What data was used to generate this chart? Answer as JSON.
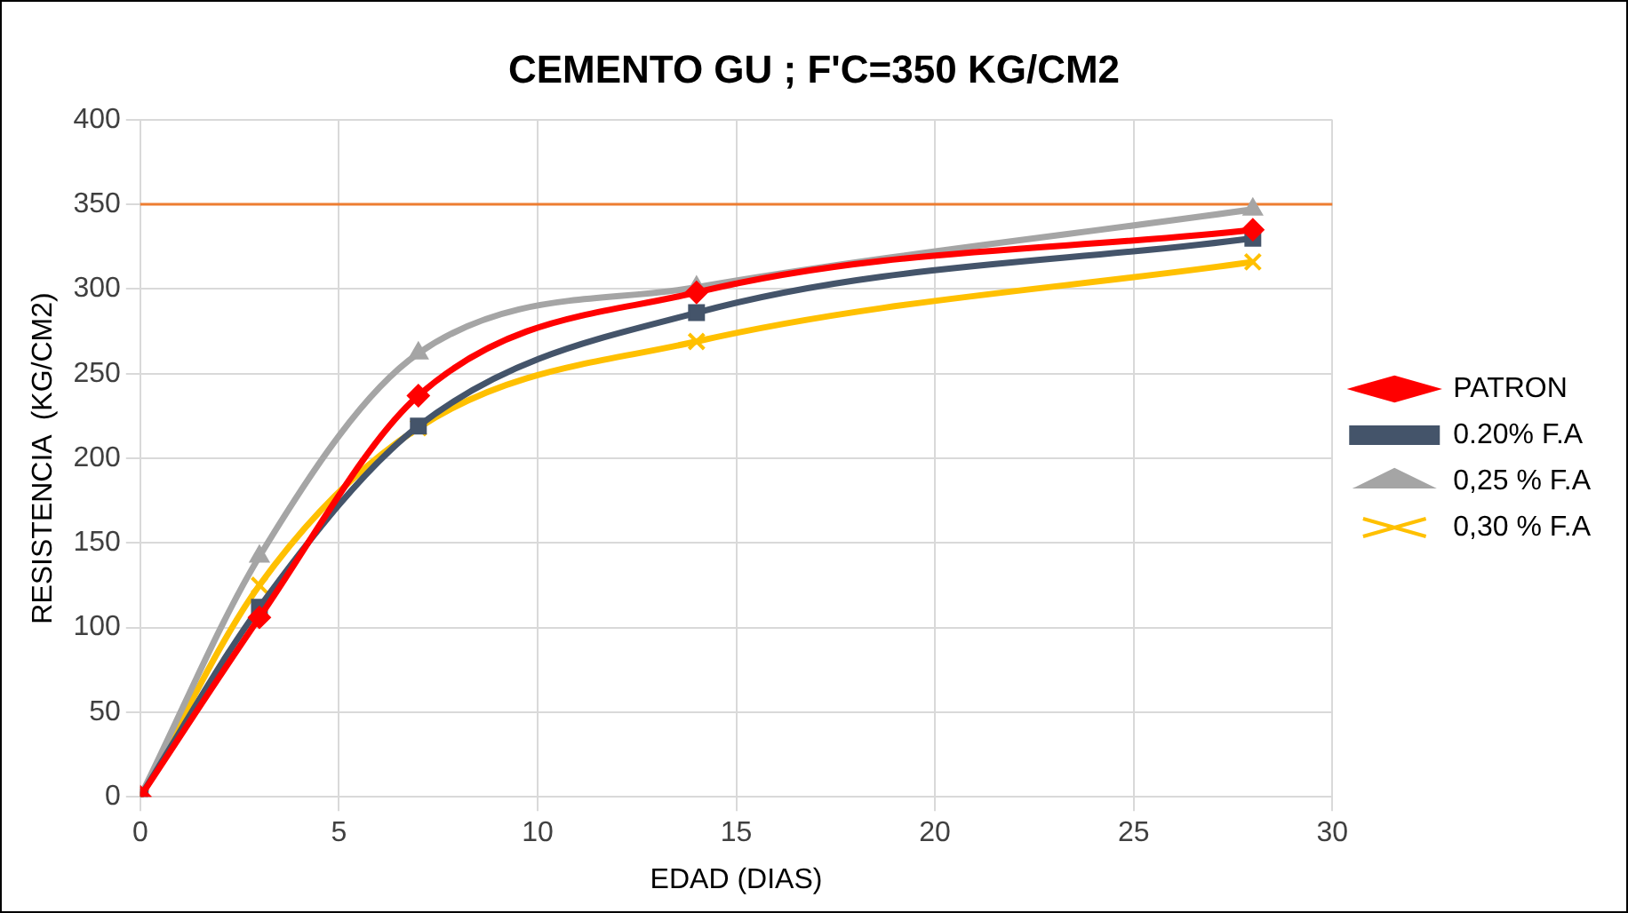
{
  "chart_data": {
    "type": "line",
    "title": "CEMENTO GU ; F'C=350 KG/CM2",
    "xlabel": "EDAD (DIAS)",
    "ylabel": "RESISTENCIA  (KG/CM2)",
    "x": [
      0,
      3,
      7,
      14,
      28
    ],
    "series": [
      {
        "name": "PATRON",
        "color": "#ff0000",
        "marker": "diamond",
        "values": [
          0,
          106,
          237,
          298,
          335
        ]
      },
      {
        "name": "0.20% F.A",
        "color": "#44546a",
        "marker": "square",
        "values": [
          0,
          112,
          219,
          286,
          330
        ]
      },
      {
        "name": "0,25 % F.A",
        "color": "#a5a5a5",
        "marker": "triangle",
        "values": [
          0,
          142,
          262,
          301,
          347
        ]
      },
      {
        "name": "0,30 % F.A",
        "color": "#ffc000",
        "marker": "cross",
        "values": [
          0,
          125,
          218,
          269,
          316
        ]
      }
    ],
    "xlim": [
      0,
      30
    ],
    "xticks": [
      0,
      5,
      10,
      15,
      20,
      25,
      30
    ],
    "ylim": [
      0,
      400
    ],
    "yticks": [
      0,
      50,
      100,
      150,
      200,
      250,
      300,
      350,
      400
    ],
    "ref_lines": [
      {
        "axis": "y",
        "value": 350,
        "label": null,
        "color": "#ed7d31"
      }
    ],
    "grid": true,
    "legend": "right"
  }
}
